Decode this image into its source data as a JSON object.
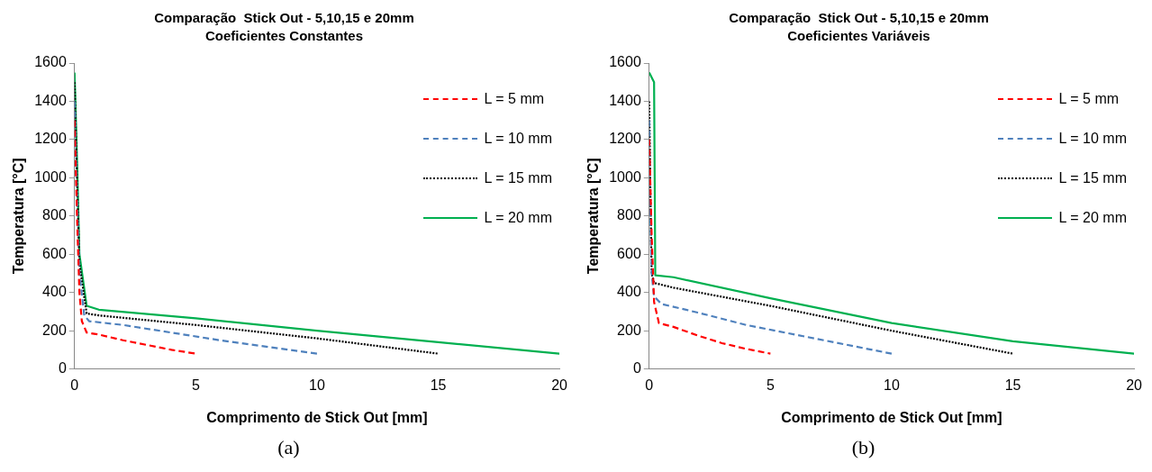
{
  "chart_data": [
    {
      "type": "line",
      "title": "Comparação  Stick Out - 5,10,15 e 20mm",
      "subtitle": "Coeficientes Constantes",
      "xlabel": "Comprimento de Stick Out [mm]",
      "ylabel": "Temperatura [°C]",
      "annotations": [
        "(a)"
      ],
      "xlim": [
        0,
        20
      ],
      "xticks": [
        0,
        5,
        10,
        15,
        20
      ],
      "ylim": [
        0,
        1600
      ],
      "yticks": [
        0,
        200,
        400,
        600,
        800,
        1000,
        1200,
        1400,
        1600
      ],
      "grid": false,
      "legend": "top right",
      "marker": "none",
      "series": [
        {
          "name": "L = 5 mm",
          "color": "#ff0000",
          "line_style": "dashed",
          "x": [
            0,
            0.1,
            0.2,
            0.3,
            0.5,
            1,
            2,
            3,
            4,
            5
          ],
          "values": [
            1300,
            800,
            400,
            250,
            190,
            180,
            150,
            125,
            100,
            80
          ]
        },
        {
          "name": "L = 10 mm",
          "color": "#4f81bd",
          "line_style": "dashed",
          "x": [
            0,
            0.1,
            0.2,
            0.4,
            0.6,
            2,
            4,
            6,
            8,
            10
          ],
          "values": [
            1400,
            900,
            500,
            280,
            250,
            230,
            190,
            150,
            115,
            80
          ]
        },
        {
          "name": "L = 15 mm",
          "color": "#000000",
          "line_style": "dotted",
          "x": [
            0,
            0.1,
            0.2,
            0.5,
            1,
            5,
            10,
            15
          ],
          "values": [
            1500,
            1000,
            550,
            290,
            280,
            230,
            160,
            80
          ]
        },
        {
          "name": "L = 20 mm",
          "color": "#00b050",
          "line_style": "solid",
          "x": [
            0,
            0.1,
            0.2,
            0.5,
            1,
            5,
            10,
            15,
            20
          ],
          "values": [
            1550,
            1100,
            600,
            330,
            310,
            265,
            200,
            140,
            80
          ]
        }
      ]
    },
    {
      "type": "line",
      "title": "Comparação  Stick Out - 5,10,15 e 20mm",
      "subtitle": "Coeficientes Variáveis",
      "xlabel": "Comprimento de Stick Out [mm]",
      "ylabel": "Temperatura [°C]",
      "annotations": [
        "(b)"
      ],
      "xlim": [
        0,
        20
      ],
      "xticks": [
        0,
        5,
        10,
        15,
        20
      ],
      "ylim": [
        0,
        1600
      ],
      "yticks": [
        0,
        200,
        400,
        600,
        800,
        1000,
        1200,
        1400,
        1600
      ],
      "grid": false,
      "legend": "top right",
      "marker": "none",
      "series": [
        {
          "name": "L = 5 mm",
          "color": "#ff0000",
          "line_style": "dashed",
          "x": [
            0,
            0.1,
            0.2,
            0.4,
            1,
            2,
            3,
            4,
            5
          ],
          "values": [
            1200,
            700,
            350,
            240,
            220,
            175,
            135,
            105,
            80
          ]
        },
        {
          "name": "L = 10 mm",
          "color": "#4f81bd",
          "line_style": "dashed",
          "x": [
            0,
            0.05,
            0.1,
            0.2,
            0.5,
            2,
            4,
            6,
            8,
            10
          ],
          "values": [
            1300,
            800,
            500,
            380,
            340,
            295,
            230,
            180,
            130,
            80
          ]
        },
        {
          "name": "L = 15 mm",
          "color": "#000000",
          "line_style": "dotted",
          "x": [
            0,
            0.05,
            0.1,
            0.2,
            1,
            5,
            10,
            15
          ],
          "values": [
            1400,
            900,
            500,
            450,
            425,
            330,
            200,
            80
          ]
        },
        {
          "name": "L = 20 mm",
          "color": "#00b050",
          "line_style": "solid",
          "x": [
            0,
            0.2,
            0.25,
            1,
            5,
            10,
            15,
            20
          ],
          "values": [
            1550,
            1500,
            490,
            480,
            370,
            240,
            145,
            80
          ]
        }
      ]
    }
  ]
}
